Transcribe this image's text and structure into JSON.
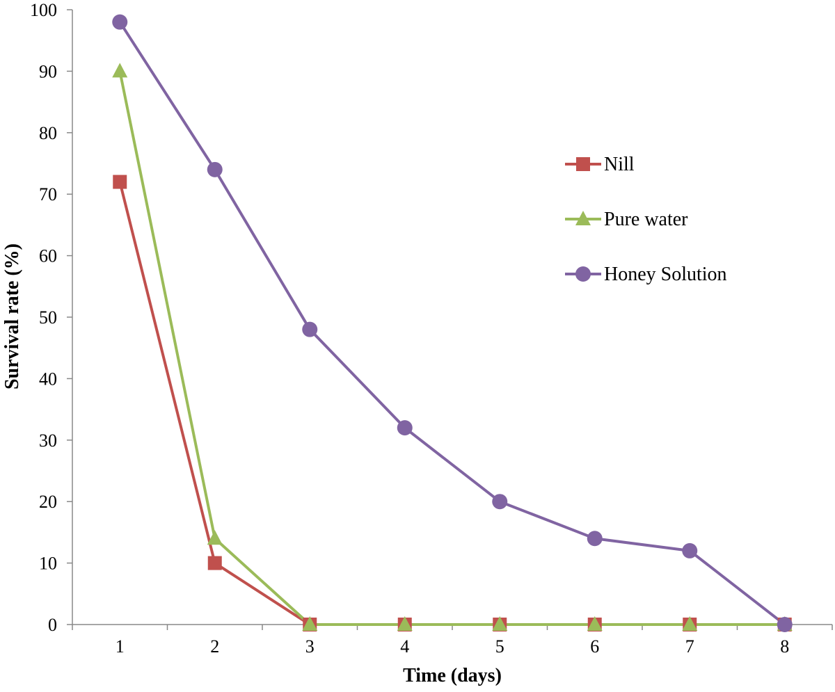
{
  "chart_data": {
    "type": "line",
    "xlabel": "Time (days)",
    "ylabel": "Survival rate (%)",
    "x": [
      1,
      2,
      3,
      4,
      5,
      6,
      7,
      8
    ],
    "ylim": [
      0,
      100
    ],
    "yticks": [
      0,
      10,
      20,
      30,
      40,
      50,
      60,
      70,
      80,
      90,
      100
    ],
    "grid": false,
    "legend_position": "right",
    "series": [
      {
        "name": "Nill",
        "values": [
          72,
          10,
          0,
          0,
          0,
          0,
          0,
          0
        ],
        "color": "#c0504d",
        "marker": "square"
      },
      {
        "name": "Pure water",
        "values": [
          90,
          14,
          0,
          0,
          0,
          0,
          0,
          0
        ],
        "color": "#9bbb59",
        "marker": "triangle"
      },
      {
        "name": "Honey Solution",
        "values": [
          98,
          74,
          48,
          32,
          20,
          14,
          12,
          0
        ],
        "color": "#8064a2",
        "marker": "circle"
      }
    ]
  }
}
